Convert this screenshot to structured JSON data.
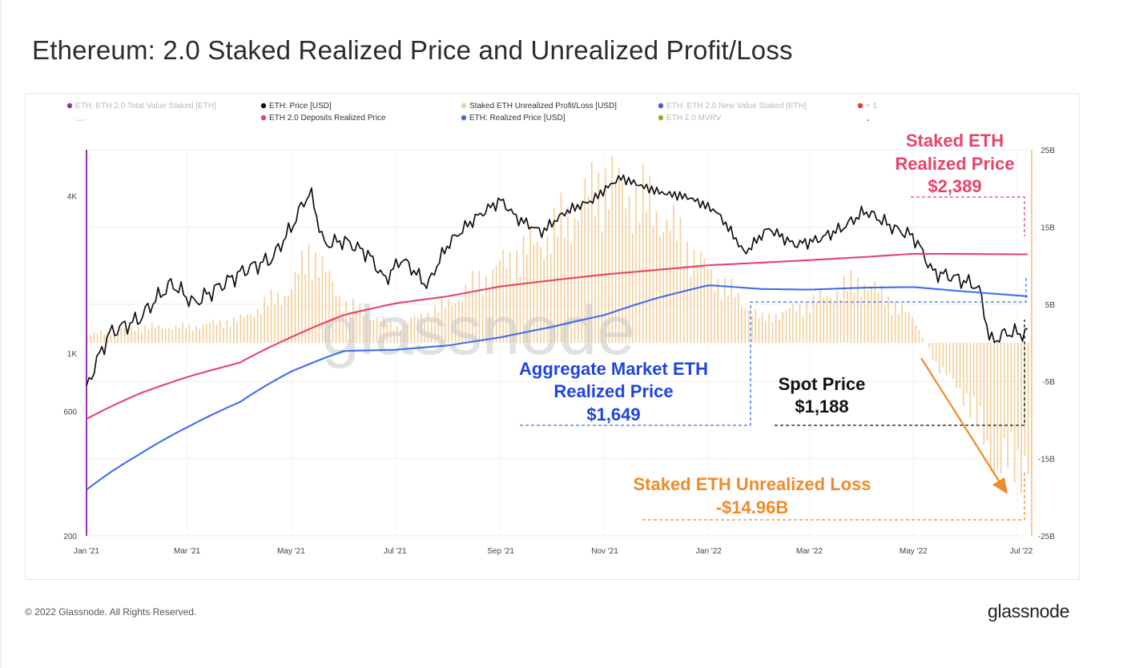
{
  "title": "Ethereum: 2.0 Staked Realized Price and Unrealized Profit/Loss",
  "footer": {
    "copyright": "© 2022 Glassnode. All Rights Reserved.",
    "brand": "glassnode"
  },
  "watermark": "glassnode",
  "colors": {
    "price": "#111111",
    "deposits_realized": "#e8436a",
    "realized_price": "#3e6ef0",
    "unrealized_pl": "#f5cd96",
    "total_staked": "#9b2fb4",
    "new_staked": "#4a64c8",
    "mvrv": "#9fa52e",
    "one": "#e13b3b",
    "loss_arrow": "#ef8a2a"
  },
  "legend": [
    {
      "label": "ETH: ETH 2.0 Total Value Staked [ETH]",
      "color": "#9b2fb4",
      "muted": true
    },
    {
      "label": "ETH: Price [USD]",
      "color": "#111111",
      "muted": false
    },
    {
      "label": "Staked ETH Unrealized Profit/Loss [USD]",
      "color": "#f5cd96",
      "muted": false
    },
    {
      "label": "ETH: ETH 2.0 New Value Staked [ETH]",
      "color": "#4a64c8",
      "muted": true
    },
    {
      "label": "= 1",
      "color": "#e13b3b",
      "muted": true
    },
    {
      "label": "ETH 2.0 Deposits Realized Price",
      "color": "#e8436a",
      "muted": false
    },
    {
      "label": "ETH: Realized Price [USD]",
      "color": "#3e6ef0",
      "muted": false
    },
    {
      "label": "ETH 2.0 MVRV",
      "color": "#9fa52e",
      "muted": true
    }
  ],
  "legend_extra": [
    "----",
    "-"
  ],
  "annotations": {
    "staked_realized": [
      "Staked ETH",
      "Realized Price",
      "$2,389"
    ],
    "aggregate_realized": [
      "Aggregate Market ETH",
      "Realized Price",
      "$1,649"
    ],
    "spot_price": [
      "Spot Price",
      "$1,188"
    ],
    "unrealized_loss": [
      "Staked ETH Unrealized Loss",
      "-$14.96B"
    ]
  },
  "chart_data": {
    "type": "line",
    "x_tick_labels": [
      "Jan '21",
      "Mar '21",
      "May '21",
      "Jul '21",
      "Sep '21",
      "Nov '21",
      "Jan '22",
      "Mar '22",
      "May '22",
      "Jul '22"
    ],
    "x_range": [
      "2021-01-01",
      "2022-07-08"
    ],
    "y_left": {
      "scale": "log",
      "tick_labels": [
        "200",
        "600",
        "1K",
        "4K"
      ],
      "ticks": [
        200,
        600,
        1000,
        4000
      ],
      "range": [
        200,
        6000
      ]
    },
    "y_right": {
      "scale": "linear",
      "tick_labels": [
        "-25B",
        "-15B",
        "-5B",
        "5B",
        "15B",
        "25B"
      ],
      "ticks": [
        -25,
        -15,
        -5,
        5,
        15,
        25
      ],
      "range": [
        -25,
        25
      ],
      "unit": "B USD"
    },
    "grid": true,
    "legend_position": "top",
    "series": [
      {
        "name": "ETH: Price [USD]",
        "axis": "left",
        "x": [
          "2021-01-01",
          "2021-01-15",
          "2021-02-01",
          "2021-02-20",
          "2021-03-05",
          "2021-03-20",
          "2021-04-05",
          "2021-04-20",
          "2021-05-01",
          "2021-05-12",
          "2021-05-20",
          "2021-06-01",
          "2021-06-15",
          "2021-06-25",
          "2021-07-05",
          "2021-07-20",
          "2021-08-01",
          "2021-08-15",
          "2021-09-01",
          "2021-09-10",
          "2021-09-25",
          "2021-10-10",
          "2021-10-25",
          "2021-11-10",
          "2021-11-25",
          "2021-12-05",
          "2021-12-20",
          "2022-01-05",
          "2022-01-22",
          "2022-02-05",
          "2022-02-20",
          "2022-03-05",
          "2022-03-20",
          "2022-04-03",
          "2022-04-20",
          "2022-05-01",
          "2022-05-12",
          "2022-05-25",
          "2022-06-08",
          "2022-06-15",
          "2022-06-25",
          "2022-07-08"
        ],
        "values": [
          730,
          1200,
          1350,
          1850,
          1550,
          1800,
          2100,
          2300,
          3000,
          4150,
          2600,
          2700,
          2400,
          1900,
          2300,
          1800,
          2600,
          3200,
          3850,
          3300,
          2900,
          3500,
          3850,
          4700,
          4300,
          4100,
          3950,
          3500,
          2400,
          3000,
          2600,
          2700,
          3000,
          3500,
          3000,
          2800,
          2050,
          1950,
          1800,
          1100,
          1200,
          1188
        ]
      },
      {
        "name": "ETH 2.0 Deposits Realized Price",
        "axis": "left",
        "x": [
          "2021-01-01",
          "2021-02-01",
          "2021-03-01",
          "2021-04-01",
          "2021-05-01",
          "2021-06-01",
          "2021-07-01",
          "2021-08-01",
          "2021-09-01",
          "2021-10-01",
          "2021-11-01",
          "2021-12-01",
          "2022-01-01",
          "2022-02-01",
          "2022-03-01",
          "2022-04-01",
          "2022-05-01",
          "2022-06-01",
          "2022-07-08"
        ],
        "values": [
          560,
          700,
          810,
          920,
          1150,
          1400,
          1550,
          1650,
          1800,
          1900,
          2000,
          2080,
          2170,
          2220,
          2270,
          2330,
          2400,
          2395,
          2389
        ]
      },
      {
        "name": "ETH: Realized Price [USD]",
        "axis": "left",
        "x": [
          "2021-01-01",
          "2021-02-01",
          "2021-03-01",
          "2021-04-01",
          "2021-05-01",
          "2021-06-01",
          "2021-07-01",
          "2021-08-01",
          "2021-09-01",
          "2021-10-01",
          "2021-11-01",
          "2021-12-01",
          "2022-01-01",
          "2022-02-01",
          "2022-03-01",
          "2022-04-01",
          "2022-05-01",
          "2022-06-01",
          "2022-07-08"
        ],
        "values": [
          300,
          410,
          520,
          650,
          850,
          1020,
          1030,
          1070,
          1150,
          1260,
          1400,
          1620,
          1820,
          1760,
          1750,
          1780,
          1790,
          1720,
          1649
        ]
      },
      {
        "name": "Staked ETH Unrealized Profit/Loss [USD]",
        "axis": "right",
        "type": "bar",
        "x": [
          "2021-01-01",
          "2021-02-01",
          "2021-03-01",
          "2021-04-01",
          "2021-05-01",
          "2021-05-12",
          "2021-06-01",
          "2021-07-01",
          "2021-08-01",
          "2021-09-01",
          "2021-10-01",
          "2021-11-01",
          "2021-12-01",
          "2022-01-01",
          "2022-02-01",
          "2022-03-01",
          "2022-04-01",
          "2022-05-01",
          "2022-05-15",
          "2022-06-01",
          "2022-06-18",
          "2022-07-08"
        ],
        "values": [
          1,
          2,
          2,
          3,
          7,
          12,
          5,
          2,
          5,
          10,
          14,
          21,
          17,
          9,
          3,
          5,
          8,
          3,
          -3,
          -7,
          -16,
          -15
        ]
      }
    ]
  }
}
